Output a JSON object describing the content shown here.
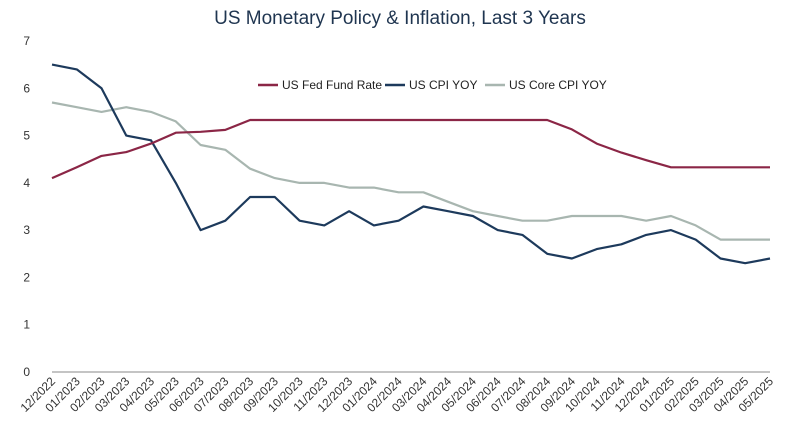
{
  "chart_data": {
    "type": "line",
    "title": "US Monetary Policy & Inflation, Last 3 Years",
    "xlabel": "",
    "ylabel": "",
    "ylim": [
      0,
      7
    ],
    "yticks": [
      "0",
      "1",
      "2",
      "3",
      "4",
      "5",
      "6",
      "7"
    ],
    "grid": false,
    "legend_position": "top-center",
    "categories": [
      "12/2022",
      "01/2023",
      "02/2023",
      "03/2023",
      "04/2023",
      "05/2023",
      "06/2023",
      "07/2023",
      "08/2023",
      "09/2023",
      "10/2023",
      "11/2023",
      "12/2023",
      "01/2024",
      "02/2024",
      "03/2024",
      "04/2024",
      "05/2024",
      "06/2024",
      "07/2024",
      "08/2024",
      "09/2024",
      "10/2024",
      "11/2024",
      "12/2024",
      "01/2025",
      "02/2025",
      "03/2025",
      "04/2025",
      "05/2025"
    ],
    "series": [
      {
        "name": "US Fed Fund Rate",
        "color": "#8b2646",
        "values": [
          4.1,
          4.33,
          4.57,
          4.65,
          4.83,
          5.06,
          5.08,
          5.12,
          5.33,
          5.33,
          5.33,
          5.33,
          5.33,
          5.33,
          5.33,
          5.33,
          5.33,
          5.33,
          5.33,
          5.33,
          5.33,
          5.13,
          4.83,
          4.64,
          4.48,
          4.33,
          4.33,
          4.33,
          4.33,
          4.33
        ]
      },
      {
        "name": "US CPI YOY",
        "color": "#1d3a5c",
        "values": [
          6.5,
          6.4,
          6.0,
          5.0,
          4.9,
          4.0,
          3.0,
          3.2,
          3.7,
          3.7,
          3.2,
          3.1,
          3.4,
          3.1,
          3.2,
          3.5,
          3.4,
          3.3,
          3.0,
          2.9,
          2.5,
          2.4,
          2.6,
          2.7,
          2.9,
          3.0,
          2.8,
          2.4,
          2.3,
          2.4
        ]
      },
      {
        "name": "US Core CPI YOY",
        "color": "#a8b6b0",
        "values": [
          5.7,
          5.6,
          5.5,
          5.6,
          5.5,
          5.3,
          4.8,
          4.7,
          4.3,
          4.1,
          4.0,
          4.0,
          3.9,
          3.9,
          3.8,
          3.8,
          3.6,
          3.4,
          3.3,
          3.2,
          3.2,
          3.3,
          3.3,
          3.3,
          3.2,
          3.3,
          3.1,
          2.8,
          2.8,
          2.8
        ]
      }
    ]
  }
}
